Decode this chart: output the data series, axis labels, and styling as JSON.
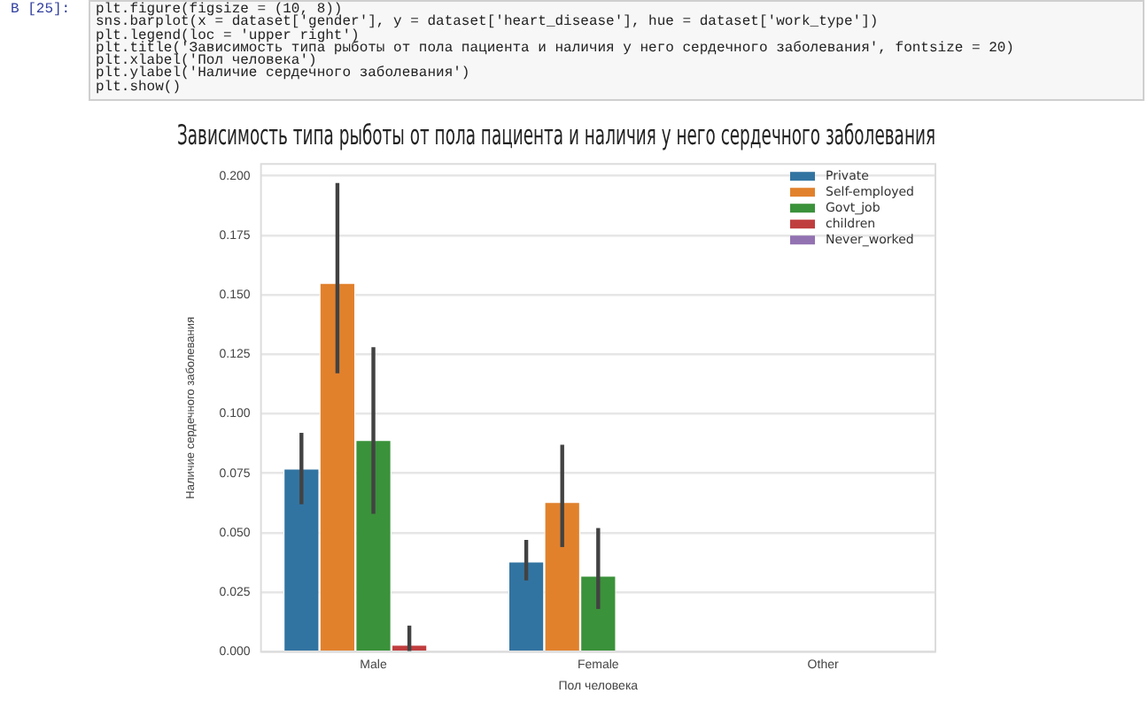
{
  "chart_data": {
    "type": "bar",
    "title": "Зависимость типа рыботы от пола пациента и наличия у него сердечного заболевания",
    "xlabel": "Пол человека",
    "ylabel": "Наличие сердечного заболевания",
    "categories": [
      "Male",
      "Female",
      "Other"
    ],
    "series": [
      {
        "name": "Private",
        "color": "#3274a1",
        "values": [
          0.077,
          0.038,
          null
        ],
        "errors": [
          [
            0.062,
            0.092
          ],
          [
            0.03,
            0.047
          ],
          null
        ]
      },
      {
        "name": "Self-employed",
        "color": "#e1812c",
        "values": [
          0.155,
          0.063,
          null
        ],
        "errors": [
          [
            0.117,
            0.197
          ],
          [
            0.044,
            0.087
          ],
          null
        ]
      },
      {
        "name": "Govt_job",
        "color": "#3a923a",
        "values": [
          0.089,
          0.032,
          null
        ],
        "errors": [
          [
            0.058,
            0.128
          ],
          [
            0.018,
            0.052
          ],
          null
        ]
      },
      {
        "name": "children",
        "color": "#c03d3e",
        "values": [
          0.003,
          null,
          null
        ],
        "errors": [
          [
            0,
            0.011
          ],
          null,
          null
        ]
      },
      {
        "name": "Never_worked",
        "color": "#9372b2",
        "values": [
          null,
          null,
          null
        ]
      }
    ],
    "ylim": [
      0,
      0.205
    ],
    "yticks": [
      {
        "value": 0,
        "label": "0.000"
      },
      {
        "value": 0.025,
        "label": "0.025"
      },
      {
        "value": 0.05,
        "label": "0.050"
      },
      {
        "value": 0.075,
        "label": "0.075"
      },
      {
        "value": 0.1,
        "label": "0.100"
      },
      {
        "value": 0.125,
        "label": "0.125"
      },
      {
        "value": 0.15,
        "label": "0.150"
      },
      {
        "value": 0.175,
        "label": "0.175"
      },
      {
        "value": 0.2,
        "label": "0.200"
      }
    ],
    "grid": "y",
    "legend": "top right",
    "annotations": [
      "В [25]:",
      "plt.figure(figsize = (10, 8))",
      "sns.barplot(x = dataset['gender'], y = dataset['heart_disease'], hue = dataset['work_type'])",
      "plt.legend(loc = 'upper right')",
      "plt.title('Зависимость типа рыботы от пола пациента и наличия у него сердечного заболевания', fontsize = 20)",
      "plt.xlabel('Пол человека')",
      "plt.ylabel('Наличие сердечного заболевания')",
      "plt.show()"
    ]
  }
}
